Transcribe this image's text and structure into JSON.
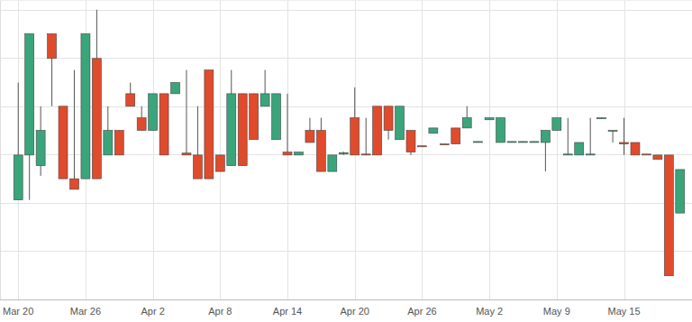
{
  "chart_data": {
    "type": "candlestick",
    "categories": [
      "Mar 20",
      null,
      null,
      null,
      null,
      null,
      "Mar 26",
      null,
      null,
      null,
      null,
      null,
      "Apr 2",
      null,
      null,
      null,
      null,
      null,
      "Apr 8",
      null,
      null,
      null,
      null,
      null,
      "Apr 14",
      null,
      null,
      null,
      null,
      null,
      "Apr 20",
      null,
      null,
      null,
      null,
      null,
      "Apr 26",
      null,
      null,
      null,
      null,
      null,
      "May 2",
      null,
      null,
      null,
      null,
      null,
      "May 9",
      null,
      null,
      null,
      null,
      null,
      "May 15",
      null,
      null,
      null,
      null,
      null
    ],
    "open": [
      2.06,
      2.99,
      2.77,
      5.5,
      4.0,
      2.5,
      2.5,
      4.99,
      2.99,
      3.5,
      4.26,
      3.76,
      3.5,
      4.26,
      4.26,
      3.03,
      2.99,
      4.75,
      2.99,
      2.77,
      4.26,
      4.26,
      4.0,
      3.31,
      3.05,
      2.99,
      3.5,
      3.5,
      2.65,
      3.01,
      3.76,
      3.01,
      4.0,
      4.0,
      3.31,
      3.5,
      3.18,
      3.44,
      3.22,
      3.55,
      3.55,
      3.25,
      3.72,
      3.25,
      3.25,
      3.25,
      3.25,
      3.25,
      3.5,
      2.99,
      2.99,
      2.99,
      3.74,
      3.48,
      3.25,
      3.25,
      3.01,
      2.99,
      2.99,
      1.79
    ],
    "high": [
      4.49,
      5.5,
      4.0,
      5.5,
      4.0,
      4.75,
      5.5,
      6.0,
      4.0,
      3.5,
      4.49,
      4.0,
      4.26,
      4.26,
      4.49,
      4.75,
      4.0,
      4.75,
      2.99,
      4.75,
      4.26,
      4.26,
      4.75,
      4.26,
      4.26,
      3.05,
      3.76,
      3.76,
      2.99,
      3.06,
      4.39,
      3.76,
      4.0,
      4.0,
      4.0,
      3.5,
      3.18,
      3.55,
      3.22,
      3.55,
      4.0,
      3.27,
      3.76,
      3.76,
      3.27,
      3.27,
      3.27,
      3.5,
      3.76,
      3.76,
      3.25,
      3.76,
      3.76,
      3.5,
      3.76,
      3.25,
      3.01,
      2.99,
      2.99,
      2.69
    ],
    "low": [
      2.06,
      2.06,
      2.56,
      4.0,
      2.5,
      2.28,
      2.5,
      2.5,
      2.99,
      2.99,
      4.0,
      3.5,
      3.5,
      2.99,
      4.26,
      2.99,
      2.5,
      2.5,
      2.65,
      2.77,
      2.77,
      3.31,
      4.0,
      3.31,
      2.99,
      2.99,
      3.25,
      2.65,
      2.65,
      2.99,
      2.99,
      2.99,
      2.99,
      3.31,
      3.31,
      2.99,
      3.16,
      3.44,
      3.2,
      3.22,
      3.55,
      3.25,
      3.72,
      3.25,
      3.25,
      3.25,
      3.25,
      2.65,
      3.5,
      2.99,
      2.99,
      2.99,
      3.74,
      3.25,
      2.99,
      2.99,
      2.99,
      2.9,
      0.49,
      1.79
    ],
    "close": [
      2.99,
      5.5,
      3.5,
      4.99,
      2.5,
      2.28,
      5.5,
      2.5,
      3.5,
      2.99,
      4.0,
      3.5,
      4.26,
      2.99,
      4.49,
      2.99,
      2.5,
      2.5,
      2.65,
      4.26,
      2.77,
      3.31,
      4.26,
      4.26,
      2.99,
      3.05,
      3.25,
      2.65,
      2.99,
      3.04,
      2.99,
      2.99,
      2.99,
      3.5,
      4.0,
      3.05,
      3.16,
      3.55,
      3.2,
      3.22,
      3.76,
      3.27,
      3.76,
      3.76,
      3.27,
      3.27,
      3.27,
      3.5,
      3.76,
      3.01,
      3.25,
      3.01,
      3.76,
      3.5,
      3.22,
      2.99,
      2.99,
      2.9,
      0.49,
      2.69
    ],
    "colors": [
      "#3aa57b",
      "#3aa57b",
      "#3aa57b",
      "#e04b2c",
      "#e04b2c",
      "#e04b2c",
      "#3aa57b",
      "#e04b2c",
      "#3aa57b",
      "#e04b2c",
      "#e04b2c",
      "#e04b2c",
      "#3aa57b",
      "#e04b2c",
      "#3aa57b",
      "#e04b2c",
      "#e04b2c",
      "#e04b2c",
      "#e04b2c",
      "#3aa57b",
      "#e04b2c",
      "#e04b2c",
      "#3aa57b",
      "#3aa57b",
      "#e04b2c",
      "#3aa57b",
      "#e04b2c",
      "#e04b2c",
      "#3aa57b",
      "#3aa57b",
      "#e04b2c",
      "#e04b2c",
      "#e04b2c",
      "#e04b2c",
      "#3aa57b",
      "#e04b2c",
      "#e04b2c",
      "#3aa57b",
      "#e04b2c",
      "#e04b2c",
      "#3aa57b",
      "#3aa57b",
      "#3aa57b",
      "#3aa57b",
      "#3aa57b",
      "#3aa57b",
      "#3aa57b",
      "#3aa57b",
      "#3aa57b",
      "#3aa57b",
      "#3aa57b",
      "#3aa57b",
      "#3aa57b",
      "#3aa57b",
      "#e04b2c",
      "#e04b2c",
      "#e04b2c",
      "#e04b2c",
      "#e04b2c",
      "#3aa57b"
    ],
    "ylim": [
      0,
      6.2
    ],
    "yticks": [
      1,
      2,
      3,
      4,
      5,
      6
    ],
    "grid": true,
    "tick_labels": "x"
  }
}
